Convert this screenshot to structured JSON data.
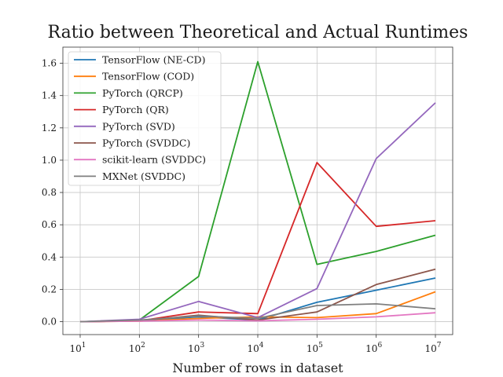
{
  "chart_data": {
    "type": "line",
    "title": "Ratio between Theoretical and Actual Runtimes",
    "xlabel": "Number of rows in dataset",
    "ylabel": "",
    "xscale": "log",
    "x": [
      10,
      100,
      1000,
      10000,
      100000,
      1000000,
      10000000
    ],
    "x_tick_labels": [
      {
        "base": "10",
        "exp": "1"
      },
      {
        "base": "10",
        "exp": "2"
      },
      {
        "base": "10",
        "exp": "3"
      },
      {
        "base": "10",
        "exp": "4"
      },
      {
        "base": "10",
        "exp": "5"
      },
      {
        "base": "10",
        "exp": "6"
      },
      {
        "base": "10",
        "exp": "7"
      }
    ],
    "y_ticks": [
      0.0,
      0.2,
      0.4,
      0.6,
      0.8,
      1.0,
      1.2,
      1.4,
      1.6
    ],
    "y_tick_labels": [
      "0.0",
      "0.2",
      "0.4",
      "0.6",
      "0.8",
      "1.0",
      "1.2",
      "1.4",
      "1.6"
    ],
    "ylim": [
      -0.08,
      1.7
    ],
    "grid": true,
    "legend_position": "top-left",
    "series": [
      {
        "name": "TensorFlow (NE-CD)",
        "color": "#1f77b4",
        "values": [
          0.0,
          0.005,
          0.03,
          0.01,
          0.12,
          0.195,
          0.27
        ]
      },
      {
        "name": "TensorFlow (COD)",
        "color": "#ff7f0e",
        "values": [
          0.0,
          0.003,
          0.02,
          0.03,
          0.025,
          0.05,
          0.185
        ]
      },
      {
        "name": "PyTorch (QRCP)",
        "color": "#2ca02c",
        "values": [
          0.0,
          0.01,
          0.28,
          1.61,
          0.355,
          0.435,
          0.535
        ]
      },
      {
        "name": "PyTorch (QR)",
        "color": "#d62728",
        "values": [
          0.0,
          0.005,
          0.06,
          0.05,
          0.985,
          0.59,
          0.625
        ]
      },
      {
        "name": "PyTorch (SVD)",
        "color": "#9467bd",
        "values": [
          0.0,
          0.015,
          0.125,
          0.025,
          0.205,
          1.01,
          1.355
        ]
      },
      {
        "name": "PyTorch (SVDDC)",
        "color": "#8c564b",
        "values": [
          0.0,
          0.005,
          0.04,
          0.01,
          0.06,
          0.23,
          0.325
        ]
      },
      {
        "name": "scikit-learn (SVDDC)",
        "color": "#e377c2",
        "values": [
          0.0,
          0.003,
          0.01,
          0.005,
          0.015,
          0.03,
          0.055
        ]
      },
      {
        "name": "MXNet (SVDDC)",
        "color": "#7f7f7f",
        "values": [
          0.0,
          0.01,
          0.035,
          0.02,
          0.1,
          0.11,
          0.08
        ]
      }
    ]
  }
}
